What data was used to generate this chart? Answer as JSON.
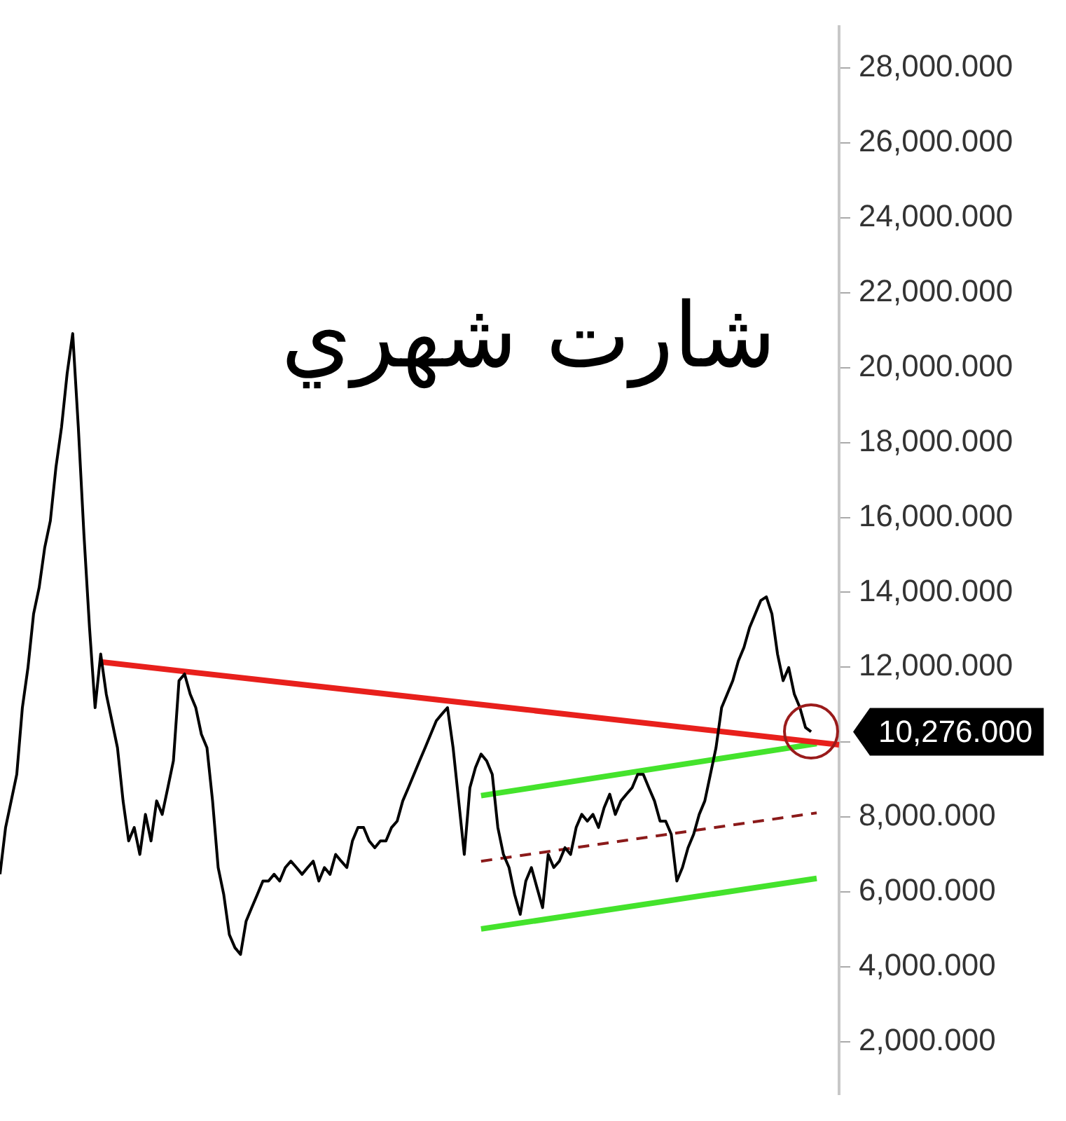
{
  "chart_data": {
    "type": "line",
    "title": "شارت شهري",
    "categories": [
      null,
      null,
      null,
      null,
      null,
      null,
      null,
      null,
      null,
      null,
      null,
      null,
      null,
      null,
      null,
      null,
      null,
      null,
      null,
      null,
      null,
      null,
      null,
      null,
      null,
      null,
      null,
      null,
      null,
      null,
      null,
      null,
      null,
      null,
      null,
      null,
      null,
      null,
      null,
      null,
      null,
      null,
      null,
      null,
      null,
      null,
      null,
      null,
      null,
      null,
      null,
      null,
      null,
      null,
      null,
      null,
      null,
      null,
      null,
      null,
      null,
      null,
      null,
      null,
      null,
      null,
      null,
      null,
      null,
      null,
      null,
      null,
      null,
      null,
      null,
      null,
      null,
      null,
      null,
      null,
      null,
      null,
      null,
      null,
      null,
      null,
      null,
      null,
      null,
      null,
      null,
      null,
      null,
      null,
      null,
      null,
      null,
      null,
      null,
      null,
      null,
      null,
      null,
      null,
      null,
      null,
      null,
      null,
      null,
      null,
      null,
      null,
      null,
      null,
      null,
      null,
      null,
      null,
      null,
      null,
      null,
      null,
      null,
      null,
      null,
      null,
      null,
      null,
      null,
      null,
      null,
      null,
      null,
      null,
      null,
      null,
      null,
      null,
      null,
      null,
      null,
      null,
      null,
      null,
      null,
      null,
      null,
      null,
      null,
      null,
      null
    ],
    "ylim": [
      600,
      29100
    ],
    "yticks": [
      {
        "value": 2000,
        "label": "2,000.000"
      },
      {
        "value": 4000,
        "label": "4,000.000"
      },
      {
        "value": 6000,
        "label": "6,000.000"
      },
      {
        "value": 8000,
        "label": "8,000.000"
      },
      {
        "value": 10000,
        "label": null
      },
      {
        "value": 12000,
        "label": "12,000.000"
      },
      {
        "value": 14000,
        "label": "14,000.000"
      },
      {
        "value": 16000,
        "label": "16,000.000"
      },
      {
        "value": 18000,
        "label": "18,000.000"
      },
      {
        "value": 20000,
        "label": "20,000.000"
      },
      {
        "value": 22000,
        "label": "22,000.000"
      },
      {
        "value": 24000,
        "label": "24,000.000"
      },
      {
        "value": 26000,
        "label": "26,000.000"
      },
      {
        "value": 28000,
        "label": "28,000.000"
      }
    ],
    "tick_labels": "y",
    "grid": false,
    "legend": false,
    "marker": "none",
    "annotations": [
      "10,276.000"
    ],
    "series": [
      {
        "color": "#000000",
        "values": [
          6470,
          7720,
          8430,
          9140,
          10920,
          11990,
          13420,
          14130,
          15200,
          15910,
          17340,
          18410,
          19840,
          20910,
          18410,
          15560,
          13060,
          10920,
          12350,
          11280,
          10570,
          9850,
          8430,
          7360,
          7720,
          7000,
          8070,
          7360,
          8430,
          8070,
          8780,
          9500,
          11640,
          11820,
          11280,
          10920,
          10210,
          9850,
          8430,
          6650,
          5930,
          4860,
          4510,
          4330,
          5220,
          5580,
          5930,
          6290,
          6290,
          6470,
          6290,
          6650,
          6820,
          6650,
          6470,
          6650,
          6820,
          6290,
          6650,
          6470,
          7000,
          6820,
          6650,
          7360,
          7720,
          7720,
          7360,
          7180,
          7360,
          7360,
          7720,
          7890,
          8430,
          8780,
          9140,
          9500,
          9850,
          10210,
          10570,
          10750,
          10920,
          9850,
          8430,
          7000,
          8780,
          9320,
          9680,
          9500,
          9140,
          7720,
          7000,
          6650,
          5930,
          5400,
          6290,
          6650,
          6110,
          5580,
          7000,
          6650,
          6820,
          7180,
          7000,
          7720,
          8070,
          7890,
          8070,
          7720,
          8250,
          8610,
          8070,
          8430,
          8610,
          8780,
          9140,
          9140,
          8780,
          8430,
          7890,
          7890,
          7540,
          6290,
          6650,
          7180,
          7540,
          8070,
          8430,
          9140,
          9850,
          10920,
          11280,
          11640,
          12170,
          12530,
          13060,
          13420,
          13780,
          13880,
          13420,
          12350,
          11640,
          11990,
          11280,
          10920,
          10390,
          10276,
          null,
          null,
          null,
          null,
          null
        ]
      },
      {
        "color": "#e8201c",
        "values": [
          null,
          null,
          null,
          null,
          null,
          null,
          null,
          null,
          null,
          null,
          null,
          null,
          null,
          null,
          null,
          null,
          null,
          null,
          12140,
          null,
          null,
          null,
          null,
          null,
          null,
          null,
          null,
          null,
          null,
          null,
          null,
          null,
          null,
          null,
          null,
          null,
          null,
          null,
          null,
          null,
          null,
          null,
          null,
          null,
          null,
          null,
          null,
          null,
          null,
          null,
          null,
          null,
          null,
          null,
          null,
          null,
          null,
          null,
          null,
          null,
          null,
          null,
          null,
          null,
          null,
          null,
          null,
          null,
          null,
          null,
          null,
          null,
          null,
          null,
          null,
          null,
          null,
          null,
          null,
          null,
          null,
          null,
          null,
          null,
          null,
          null,
          null,
          null,
          null,
          null,
          null,
          null,
          null,
          null,
          null,
          null,
          null,
          null,
          null,
          null,
          null,
          null,
          null,
          null,
          null,
          null,
          null,
          null,
          null,
          null,
          null,
          null,
          null,
          null,
          null,
          null,
          null,
          null,
          null,
          null,
          null,
          null,
          null,
          null,
          null,
          null,
          null,
          null,
          null,
          null,
          null,
          null,
          null,
          null,
          null,
          null,
          null,
          null,
          null,
          null,
          null,
          null,
          null,
          null,
          null,
          null,
          null,
          null,
          null,
          null,
          9930
        ]
      },
      {
        "color": "#44e32c",
        "values": [
          null,
          null,
          null,
          null,
          null,
          null,
          null,
          null,
          null,
          null,
          null,
          null,
          null,
          null,
          null,
          null,
          null,
          null,
          null,
          null,
          null,
          null,
          null,
          null,
          null,
          null,
          null,
          null,
          null,
          null,
          null,
          null,
          null,
          null,
          null,
          null,
          null,
          null,
          null,
          null,
          null,
          null,
          null,
          null,
          null,
          null,
          null,
          null,
          null,
          null,
          null,
          null,
          null,
          null,
          null,
          null,
          null,
          null,
          null,
          null,
          null,
          null,
          null,
          null,
          null,
          null,
          null,
          null,
          null,
          null,
          null,
          null,
          null,
          null,
          null,
          null,
          null,
          null,
          null,
          null,
          null,
          null,
          null,
          null,
          null,
          null,
          8570,
          null,
          null,
          null,
          null,
          null,
          null,
          null,
          null,
          null,
          null,
          null,
          null,
          null,
          null,
          null,
          null,
          null,
          null,
          null,
          null,
          null,
          null,
          null,
          null,
          null,
          null,
          null,
          null,
          null,
          null,
          null,
          null,
          null,
          null,
          null,
          null,
          null,
          null,
          null,
          null,
          null,
          null,
          null,
          null,
          null,
          null,
          null,
          null,
          null,
          null,
          null,
          null,
          null,
          null,
          null,
          null,
          null,
          null,
          null,
          9960,
          null,
          null,
          null,
          null
        ]
      },
      {
        "color": "#44e32c",
        "values": [
          null,
          null,
          null,
          null,
          null,
          null,
          null,
          null,
          null,
          null,
          null,
          null,
          null,
          null,
          null,
          null,
          null,
          null,
          null,
          null,
          null,
          null,
          null,
          null,
          null,
          null,
          null,
          null,
          null,
          null,
          null,
          null,
          null,
          null,
          null,
          null,
          null,
          null,
          null,
          null,
          null,
          null,
          null,
          null,
          null,
          null,
          null,
          null,
          null,
          null,
          null,
          null,
          null,
          null,
          null,
          null,
          null,
          null,
          null,
          null,
          null,
          null,
          null,
          null,
          null,
          null,
          null,
          null,
          null,
          null,
          null,
          null,
          null,
          null,
          null,
          null,
          null,
          null,
          null,
          null,
          null,
          null,
          null,
          null,
          null,
          null,
          5010,
          null,
          null,
          null,
          null,
          null,
          null,
          null,
          null,
          null,
          null,
          null,
          null,
          null,
          null,
          null,
          null,
          null,
          null,
          null,
          null,
          null,
          null,
          null,
          null,
          null,
          null,
          null,
          null,
          null,
          null,
          null,
          null,
          null,
          null,
          null,
          null,
          null,
          null,
          null,
          null,
          null,
          null,
          null,
          null,
          null,
          null,
          null,
          null,
          null,
          null,
          null,
          null,
          null,
          null,
          null,
          null,
          null,
          null,
          null,
          6360,
          null,
          null,
          null,
          null
        ]
      },
      {
        "color": "#8b1a1a",
        "line_style": "dashed",
        "values": [
          null,
          null,
          null,
          null,
          null,
          null,
          null,
          null,
          null,
          null,
          null,
          null,
          null,
          null,
          null,
          null,
          null,
          null,
          null,
          null,
          null,
          null,
          null,
          null,
          null,
          null,
          null,
          null,
          null,
          null,
          null,
          null,
          null,
          null,
          null,
          null,
          null,
          null,
          null,
          null,
          null,
          null,
          null,
          null,
          null,
          null,
          null,
          null,
          null,
          null,
          null,
          null,
          null,
          null,
          null,
          null,
          null,
          null,
          null,
          null,
          null,
          null,
          null,
          null,
          null,
          null,
          null,
          null,
          null,
          null,
          null,
          null,
          null,
          null,
          null,
          null,
          null,
          null,
          null,
          null,
          null,
          null,
          null,
          null,
          null,
          null,
          6820,
          null,
          null,
          null,
          null,
          null,
          null,
          null,
          null,
          null,
          null,
          null,
          null,
          null,
          null,
          null,
          null,
          null,
          null,
          null,
          null,
          null,
          null,
          null,
          null,
          null,
          null,
          null,
          null,
          null,
          null,
          null,
          null,
          null,
          null,
          null,
          null,
          null,
          null,
          null,
          null,
          null,
          null,
          null,
          null,
          null,
          null,
          null,
          null,
          null,
          null,
          null,
          null,
          null,
          null,
          null,
          null,
          null,
          null,
          null,
          8110,
          null,
          null,
          null,
          null
        ]
      }
    ]
  }
}
